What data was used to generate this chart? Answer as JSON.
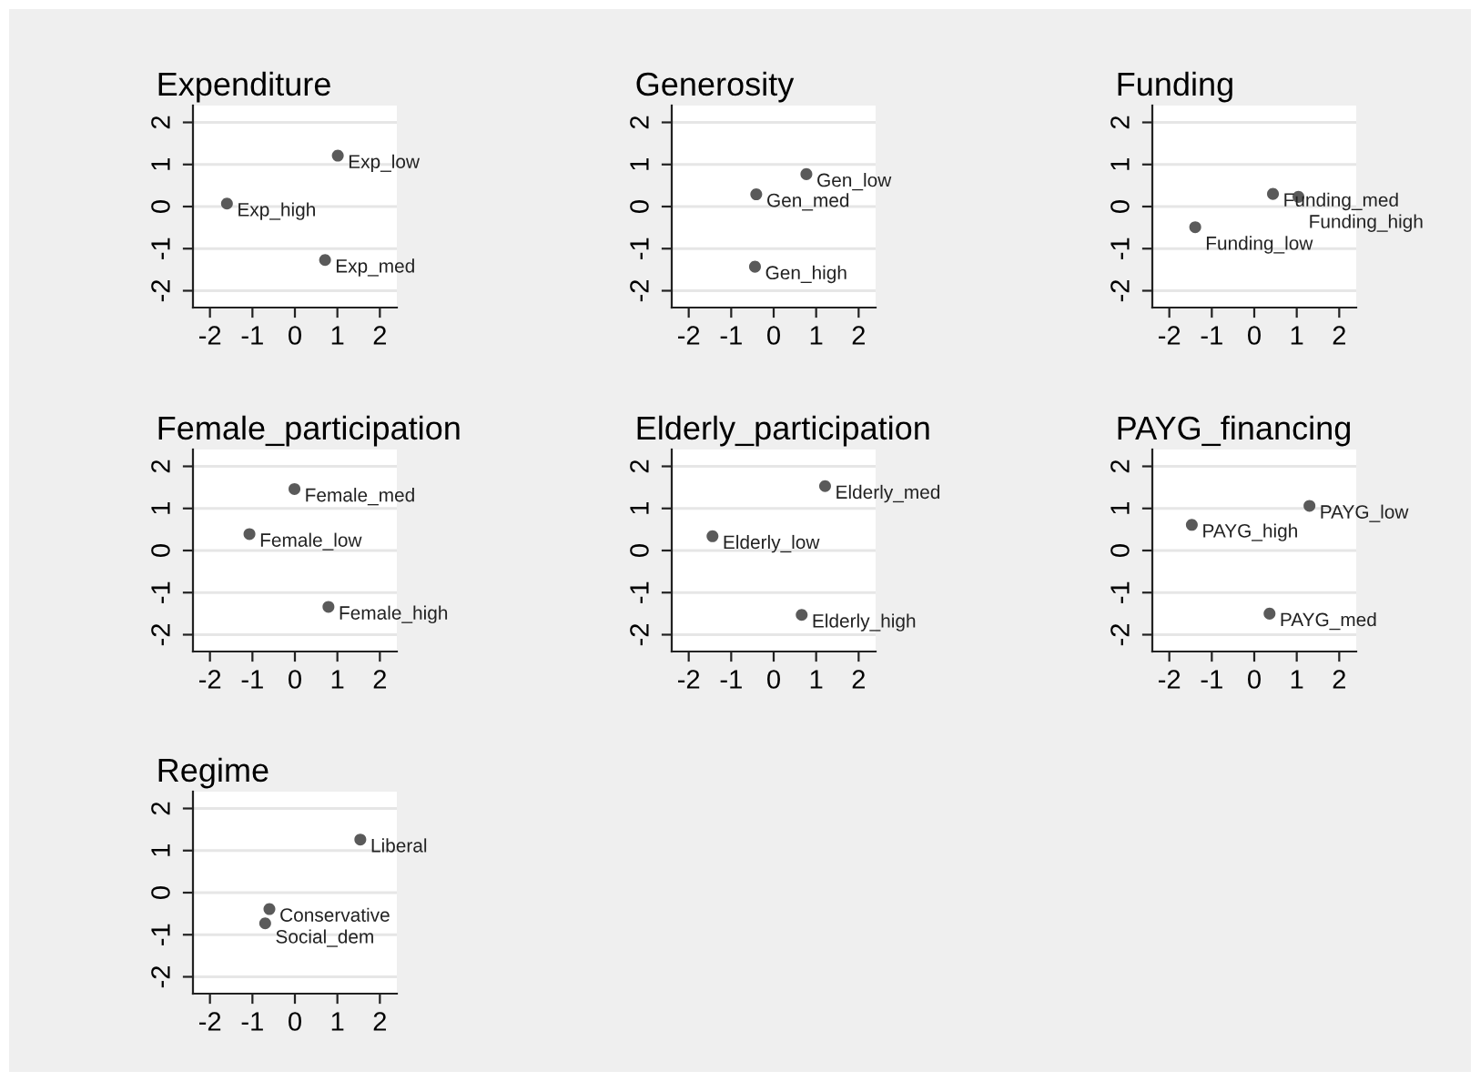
{
  "chart_data": [
    {
      "type": "scatter",
      "title": "Expenditure",
      "xlim": [
        -2.4,
        2.4
      ],
      "ylim": [
        -2.4,
        2.4
      ],
      "xticks": [
        -2,
        -1,
        0,
        1,
        2
      ],
      "yticks": [
        -2,
        -1,
        0,
        1,
        2
      ],
      "grid": "y",
      "marker": "circle",
      "legend": false,
      "series": [
        {
          "name": "Exp_low",
          "color": "#5a5a5a",
          "x": [
            1.01
          ],
          "values": [
            1.21
          ]
        },
        {
          "name": "Exp_high",
          "color": "#5a5a5a",
          "x": [
            -1.6
          ],
          "values": [
            0.07
          ]
        },
        {
          "name": "Exp_med",
          "color": "#5a5a5a",
          "x": [
            0.71
          ],
          "values": [
            -1.27
          ]
        }
      ]
    },
    {
      "type": "scatter",
      "title": "Generosity",
      "xlim": [
        -2.4,
        2.4
      ],
      "ylim": [
        -2.4,
        2.4
      ],
      "xticks": [
        -2,
        -1,
        0,
        1,
        2
      ],
      "yticks": [
        -2,
        -1,
        0,
        1,
        2
      ],
      "grid": "y",
      "marker": "circle",
      "legend": false,
      "series": [
        {
          "name": "Gen_low",
          "color": "#5a5a5a",
          "x": [
            0.77
          ],
          "values": [
            0.77
          ]
        },
        {
          "name": "Gen_med",
          "color": "#5a5a5a",
          "x": [
            -0.41
          ],
          "values": [
            0.29
          ]
        },
        {
          "name": "Gen_high",
          "color": "#5a5a5a",
          "x": [
            -0.44
          ],
          "values": [
            -1.43
          ]
        }
      ]
    },
    {
      "type": "scatter",
      "title": "Funding",
      "xlim": [
        -2.4,
        2.4
      ],
      "ylim": [
        -2.4,
        2.4
      ],
      "xticks": [
        -2,
        -1,
        0,
        1,
        2
      ],
      "yticks": [
        -2,
        -1,
        0,
        1,
        2
      ],
      "grid": "y",
      "marker": "circle",
      "legend": false,
      "series": [
        {
          "name": "Funding_med",
          "color": "#5a5a5a",
          "x": [
            0.44
          ],
          "values": [
            0.3
          ]
        },
        {
          "name": "Funding_high",
          "color": "#5a5a5a",
          "x": [
            1.04
          ],
          "values": [
            0.23
          ]
        },
        {
          "name": "Funding_low",
          "color": "#5a5a5a",
          "x": [
            -1.39
          ],
          "values": [
            -0.49
          ]
        }
      ]
    },
    {
      "type": "scatter",
      "title": "Female_participation",
      "xlim": [
        -2.4,
        2.4
      ],
      "ylim": [
        -2.4,
        2.4
      ],
      "xticks": [
        -2,
        -1,
        0,
        1,
        2
      ],
      "yticks": [
        -2,
        -1,
        0,
        1,
        2
      ],
      "grid": "y",
      "marker": "circle",
      "legend": false,
      "series": [
        {
          "name": "Female_med",
          "color": "#5a5a5a",
          "x": [
            -0.01
          ],
          "values": [
            1.46
          ]
        },
        {
          "name": "Female_low",
          "color": "#5a5a5a",
          "x": [
            -1.07
          ],
          "values": [
            0.39
          ]
        },
        {
          "name": "Female_high",
          "color": "#5a5a5a",
          "x": [
            0.79
          ],
          "values": [
            -1.34
          ]
        }
      ]
    },
    {
      "type": "scatter",
      "title": "Elderly_participation",
      "xlim": [
        -2.4,
        2.4
      ],
      "ylim": [
        -2.4,
        2.4
      ],
      "xticks": [
        -2,
        -1,
        0,
        1,
        2
      ],
      "yticks": [
        -2,
        -1,
        0,
        1,
        2
      ],
      "grid": "y",
      "marker": "circle",
      "legend": false,
      "series": [
        {
          "name": "Elderly_med",
          "color": "#5a5a5a",
          "x": [
            1.21
          ],
          "values": [
            1.53
          ]
        },
        {
          "name": "Elderly_low",
          "color": "#5a5a5a",
          "x": [
            -1.44
          ],
          "values": [
            0.34
          ]
        },
        {
          "name": "Elderly_high",
          "color": "#5a5a5a",
          "x": [
            0.66
          ],
          "values": [
            -1.53
          ]
        }
      ]
    },
    {
      "type": "scatter",
      "title": "PAYG_financing",
      "xlim": [
        -2.4,
        2.4
      ],
      "ylim": [
        -2.4,
        2.4
      ],
      "xticks": [
        -2,
        -1,
        0,
        1,
        2
      ],
      "yticks": [
        -2,
        -1,
        0,
        1,
        2
      ],
      "grid": "y",
      "marker": "circle",
      "legend": false,
      "series": [
        {
          "name": "PAYG_low",
          "color": "#5a5a5a",
          "x": [
            1.3
          ],
          "values": [
            1.06
          ]
        },
        {
          "name": "PAYG_high",
          "color": "#5a5a5a",
          "x": [
            -1.47
          ],
          "values": [
            0.61
          ]
        },
        {
          "name": "PAYG_med",
          "color": "#5a5a5a",
          "x": [
            0.36
          ],
          "values": [
            -1.5
          ]
        }
      ]
    },
    {
      "type": "scatter",
      "title": "Regime",
      "xlim": [
        -2.4,
        2.4
      ],
      "ylim": [
        -2.4,
        2.4
      ],
      "xticks": [
        -2,
        -1,
        0,
        1,
        2
      ],
      "yticks": [
        -2,
        -1,
        0,
        1,
        2
      ],
      "grid": "y",
      "marker": "circle",
      "legend": false,
      "series": [
        {
          "name": "Liberal",
          "color": "#5a5a5a",
          "x": [
            1.54
          ],
          "values": [
            1.26
          ]
        },
        {
          "name": "Conservative",
          "color": "#5a5a5a",
          "x": [
            -0.6
          ],
          "values": [
            -0.39
          ]
        },
        {
          "name": "Social_dem",
          "color": "#5a5a5a",
          "x": [
            -0.7
          ],
          "values": [
            -0.73
          ]
        }
      ]
    }
  ]
}
